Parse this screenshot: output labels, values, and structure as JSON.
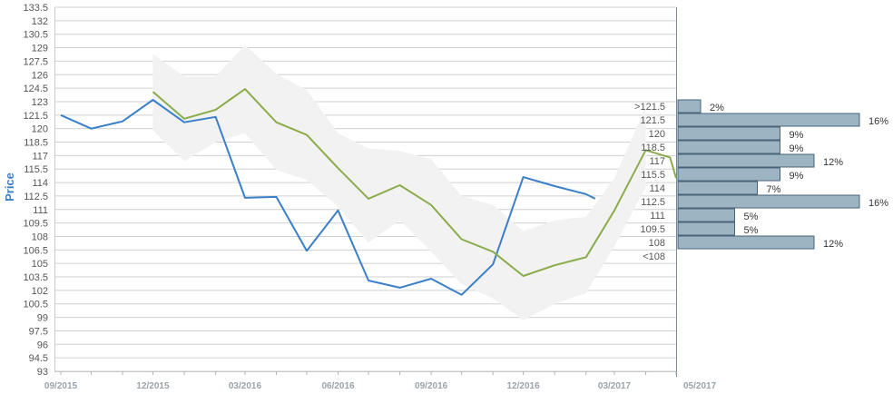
{
  "chart_data": {
    "type": "line",
    "ylabel": "Price",
    "ylim": [
      93,
      133.5
    ],
    "y_ticks": [
      "93",
      "94.5",
      "96",
      "97.5",
      "99",
      "100.5",
      "102",
      "103.5",
      "105",
      "106.5",
      "108",
      "109.5",
      "111",
      "112.5",
      "114",
      "115.5",
      "117",
      "118.5",
      "120",
      "121.5",
      "123",
      "124.5",
      "126",
      "127.5",
      "129",
      "130.5",
      "132",
      "133.5"
    ],
    "x_ticks": [
      "09/2015",
      "12/2015",
      "03/2016",
      "06/2016",
      "09/2016",
      "12/2016",
      "03/2017",
      "05/2017"
    ],
    "series": [
      {
        "color": "#3a7fc8",
        "x": [
          "2015-09",
          "2015-10",
          "2015-11",
          "2015-12",
          "2016-01",
          "2016-02",
          "2016-03",
          "2016-04",
          "2016-05",
          "2016-06",
          "2016-07",
          "2016-08",
          "2016-09",
          "2016-10",
          "2016-11",
          "2016-12",
          "2017-01",
          "2017-02",
          "2017-02-10"
        ],
        "values": [
          121.5,
          120.0,
          120.8,
          123.2,
          120.7,
          121.3,
          112.3,
          112.4,
          106.4,
          110.9,
          103.1,
          102.3,
          103.3,
          101.5,
          104.9,
          114.6,
          113.6,
          112.7,
          112.2
        ]
      },
      {
        "color": "#8aac4a",
        "x": [
          "2015-12",
          "2016-01",
          "2016-02",
          "2016-03",
          "2016-04",
          "2016-05",
          "2016-06",
          "2016-07",
          "2016-08",
          "2016-09",
          "2016-10",
          "2016-11",
          "2016-12",
          "2017-01",
          "2017-02",
          "2017-03",
          "2017-04",
          "2017-04-25",
          "2017-05"
        ],
        "values": [
          124.1,
          121.1,
          122.1,
          124.4,
          120.7,
          119.3,
          115.6,
          112.2,
          113.7,
          111.5,
          107.7,
          106.3,
          103.6,
          104.8,
          105.7,
          110.9,
          117.6,
          116.8,
          114.5
        ]
      }
    ],
    "band": {
      "color": "#f2f2f2",
      "x": [
        "2015-12",
        "2016-01",
        "2016-02",
        "2016-03",
        "2016-04",
        "2016-05",
        "2016-06",
        "2016-07",
        "2016-08",
        "2016-09",
        "2016-10",
        "2016-11",
        "2016-12",
        "2017-01",
        "2017-02",
        "2017-03",
        "2017-04"
      ],
      "upper": [
        128.3,
        125.8,
        125.8,
        129.3,
        126.1,
        124.3,
        119.5,
        117.8,
        117.5,
        116.6,
        112.5,
        111.5,
        108.6,
        109.8,
        110.2,
        114.5,
        122.4
      ],
      "lower": [
        119.8,
        116.4,
        118.5,
        119.5,
        115.4,
        114.3,
        111.3,
        107.3,
        109.8,
        106.3,
        102.7,
        101.1,
        98.7,
        100.5,
        101.7,
        106.9,
        113.5
      ]
    },
    "histogram": {
      "bar_color": "#9db4c2",
      "bins": [
        {
          "label": ">121.5",
          "percent": "2%",
          "value": 2
        },
        {
          "label": "121.5",
          "percent": "16%",
          "value": 16
        },
        {
          "label": "120",
          "percent": "9%",
          "value": 9
        },
        {
          "label": "118.5",
          "percent": "9%",
          "value": 9
        },
        {
          "label": "117",
          "percent": "12%",
          "value": 12
        },
        {
          "label": "115.5",
          "percent": "9%",
          "value": 9
        },
        {
          "label": "114",
          "percent": "7%",
          "value": 7
        },
        {
          "label": "112.5",
          "percent": "16%",
          "value": 16
        },
        {
          "label": "111",
          "percent": "5%",
          "value": 5
        },
        {
          "label": "109.5",
          "percent": "5%",
          "value": 5
        },
        {
          "label": "108",
          "percent": "12%",
          "value": 12
        },
        {
          "label": "<108",
          "percent": "",
          "value": 0
        }
      ]
    }
  }
}
